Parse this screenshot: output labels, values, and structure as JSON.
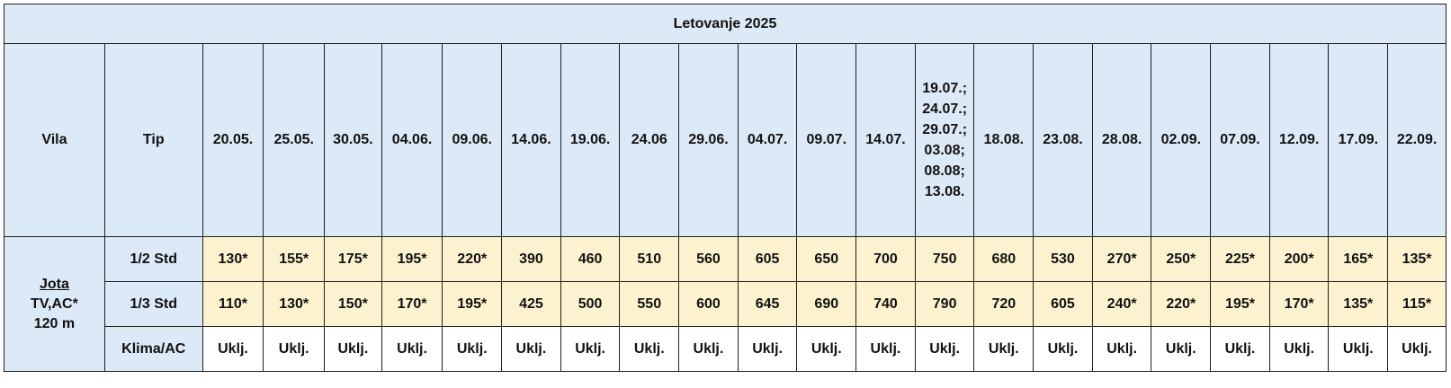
{
  "title": "Letovanje 2025",
  "headers": {
    "vila": "Vila",
    "tip": "Tip",
    "dates": [
      "20.05.",
      "25.05.",
      "30.05.",
      "04.06.",
      "09.06.",
      "14.06.",
      "19.06.",
      "24.06",
      "29.06.",
      "04.07.",
      "09.07.",
      "14.07.",
      "19.07.;\n24.07.;\n29.07.;\n03.08;\n08.08;\n13.08.",
      "18.08.",
      "23.08.",
      "28.08.",
      "02.09.",
      "07.09.",
      "12.09.",
      "17.09.",
      "22.09."
    ]
  },
  "vila": {
    "name": "Jota",
    "features": "TV,AC*",
    "distance": "120 m"
  },
  "rows": [
    {
      "tip": "1/2 Std",
      "values": [
        "130*",
        "155*",
        "175*",
        "195*",
        "220*",
        "390",
        "460",
        "510",
        "560",
        "605",
        "650",
        "700",
        "750",
        "680",
        "530",
        "270*",
        "250*",
        "225*",
        "200*",
        "165*",
        "135*"
      ]
    },
    {
      "tip": "1/3 Std",
      "values": [
        "110*",
        "130*",
        "150*",
        "170*",
        "195*",
        "425",
        "500",
        "550",
        "600",
        "645",
        "690",
        "740",
        "790",
        "720",
        "605",
        "240*",
        "220*",
        "195*",
        "170*",
        "135*",
        "115*"
      ]
    },
    {
      "tip": "Klima/AC",
      "values": [
        "Uklj.",
        "Uklj.",
        "Uklj.",
        "Uklj.",
        "Uklj.",
        "Uklj.",
        "Uklj.",
        "Uklj.",
        "Uklj.",
        "Uklj.",
        "Uklj.",
        "Uklj.",
        "Uklj.",
        "Uklj.",
        "Uklj.",
        "Uklj.",
        "Uklj.",
        "Uklj.",
        "Uklj.",
        "Uklj.",
        "Uklj."
      ]
    }
  ]
}
